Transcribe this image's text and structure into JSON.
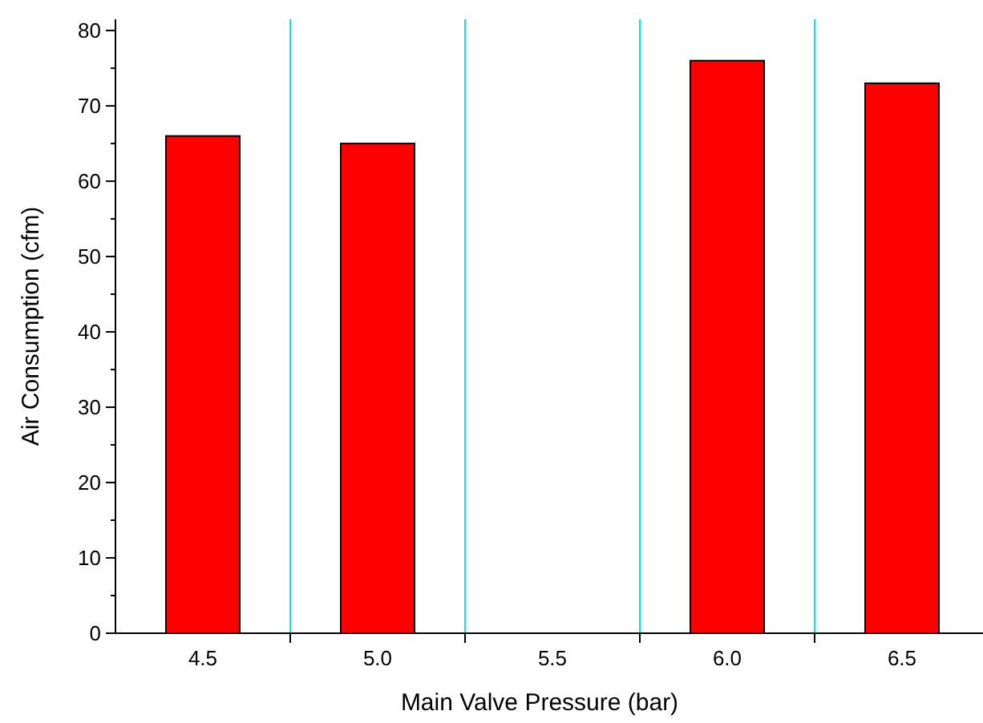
{
  "chart_data": {
    "type": "bar",
    "xlabel": "Main Valve Pressure (bar)",
    "ylabel": "Air Consumption (cfm)",
    "categories": [
      "4.5",
      "5.0",
      "5.5",
      "6.0",
      "6.5"
    ],
    "values": [
      66,
      65,
      null,
      76,
      73
    ],
    "color": "#ff0000",
    "ylim": [
      0,
      81.5
    ],
    "yticks": [
      0,
      10,
      20,
      30,
      40,
      50,
      60,
      70,
      80
    ],
    "grid": "x"
  }
}
